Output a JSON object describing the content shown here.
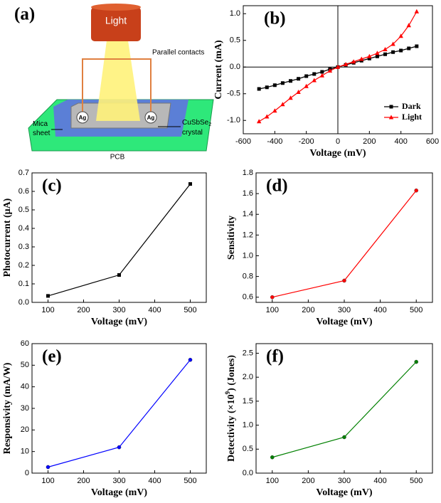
{
  "schematic": {
    "panel_label": "(a)",
    "lamp": "Light",
    "contacts": "Parallel contacts",
    "electrode_left": "Ag",
    "electrode_right": "Ag",
    "crystal": [
      "CuSbSe",
      "2",
      "crystal"
    ],
    "mica": [
      "Mica",
      "sheet"
    ],
    "board": "PCB"
  },
  "chart_data": [
    {
      "type": "line",
      "panel_label": "(b)",
      "x_label": "Voltage (mV)",
      "y_label": "Current (mA)",
      "x": [
        -500,
        -450,
        -400,
        -350,
        -300,
        -250,
        -200,
        -150,
        -100,
        -50,
        0,
        50,
        100,
        150,
        200,
        250,
        300,
        350,
        400,
        450,
        500
      ],
      "series": [
        {
          "name": "Dark",
          "color": "#000000",
          "marker": "square",
          "values": [
            -0.41,
            -0.38,
            -0.34,
            -0.3,
            -0.26,
            -0.22,
            -0.17,
            -0.13,
            -0.09,
            -0.04,
            0,
            0.04,
            0.08,
            0.12,
            0.16,
            0.2,
            0.24,
            0.28,
            0.31,
            0.35,
            0.39
          ]
        },
        {
          "name": "Light",
          "color": "#ff0000",
          "marker": "triangle",
          "values": [
            -1.02,
            -0.93,
            -0.82,
            -0.7,
            -0.58,
            -0.47,
            -0.36,
            -0.25,
            -0.16,
            -0.07,
            0,
            0.05,
            0.1,
            0.15,
            0.2,
            0.26,
            0.33,
            0.43,
            0.58,
            0.78,
            1.04
          ]
        }
      ],
      "xlim": [
        -600,
        600
      ],
      "xticks": [
        -600,
        -400,
        -200,
        0,
        200,
        400,
        600
      ],
      "ylim": [
        -1.25,
        1.15
      ],
      "yticks": [
        {
          "value": -1,
          "label": "-1.0"
        },
        -0.5,
        {
          "value": 0,
          "label": "0.0"
        },
        0.5,
        {
          "value": 1,
          "label": "1.0"
        }
      ],
      "zero_lines": true,
      "legend": "lower-right"
    },
    {
      "type": "line",
      "panel_label": "(c)",
      "x_label": "Voltage (mV)",
      "y_label": "Photocurrent (μA)",
      "x": [
        100,
        300,
        500
      ],
      "values": [
        0.035,
        0.148,
        0.64
      ],
      "color": "#000000",
      "marker": "square",
      "xlim": [
        55,
        545
      ],
      "xticks": [
        100,
        200,
        300,
        400,
        500
      ],
      "ylim": [
        0,
        0.7
      ],
      "yticks": [
        {
          "value": 0,
          "label": "0.0"
        },
        0.1,
        0.2,
        0.3,
        0.4,
        0.5,
        0.6,
        0.7
      ]
    },
    {
      "type": "line",
      "panel_label": "(d)",
      "x_label": "Voltage (mV)",
      "y_label": "Sensitivity",
      "x": [
        100,
        300,
        500
      ],
      "values": [
        0.6,
        0.76,
        1.63
      ],
      "color": "#ff0000",
      "marker": "circle",
      "xlim": [
        55,
        545
      ],
      "xticks": [
        100,
        200,
        300,
        400,
        500
      ],
      "ylim": [
        0.55,
        1.8
      ],
      "yticks": [
        0.6,
        0.8,
        {
          "value": 1,
          "label": "1.0"
        },
        1.2,
        1.4,
        1.6,
        1.8
      ]
    },
    {
      "type": "line",
      "panel_label": "(e)",
      "x_label": "Voltage (mV)",
      "y_label": "Responsivity (mA/W)",
      "x": [
        100,
        300,
        500
      ],
      "values": [
        2.8,
        12,
        52.5
      ],
      "color": "#0000ff",
      "marker": "circle",
      "xlim": [
        55,
        545
      ],
      "xticks": [
        100,
        200,
        300,
        400,
        500
      ],
      "ylim": [
        0,
        60
      ],
      "yticks": [
        0,
        10,
        20,
        30,
        40,
        50,
        60
      ]
    },
    {
      "type": "line",
      "panel_label": "(f)",
      "x_label": "Voltage (mV)",
      "y_label": [
        "Detectivity (×10",
        "9",
        ") (Jones)"
      ],
      "x": [
        100,
        300,
        500
      ],
      "values": [
        0.33,
        0.75,
        2.32
      ],
      "color": "#008000",
      "marker": "circle",
      "xlim": [
        55,
        545
      ],
      "xticks": [
        100,
        200,
        300,
        400,
        500
      ],
      "ylim": [
        0,
        2.7
      ],
      "yticks": [
        {
          "value": 0,
          "label": "0.0"
        },
        0.5,
        {
          "value": 1,
          "label": "1.0"
        },
        1.5,
        {
          "value": 2,
          "label": "2.0"
        },
        2.5
      ]
    }
  ]
}
